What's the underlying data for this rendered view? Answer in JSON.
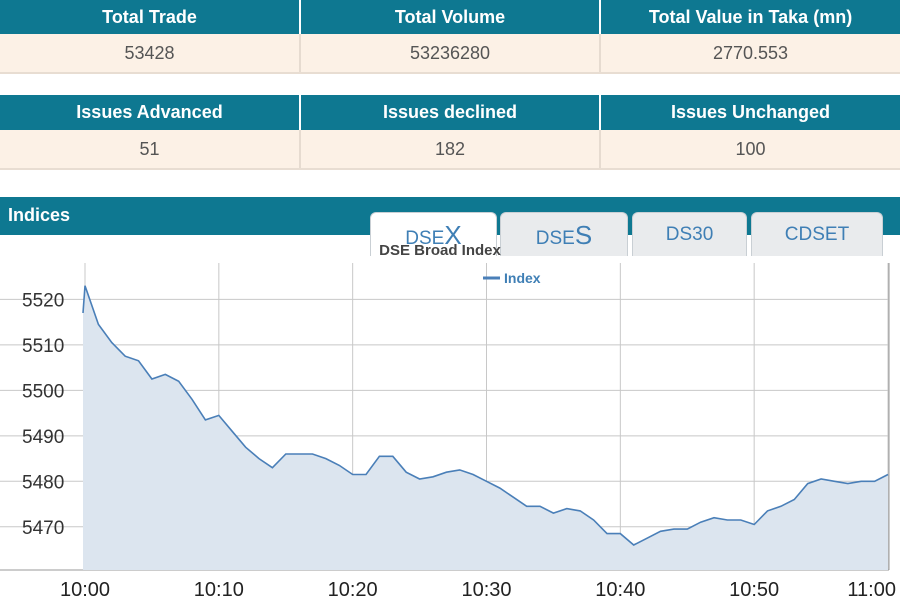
{
  "market_summary": {
    "headers": [
      "Total Trade",
      "Total Volume",
      "Total Value in Taka (mn)"
    ],
    "values": [
      "53428",
      "53236280",
      "2770.553"
    ]
  },
  "issues_summary": {
    "headers": [
      "Issues Advanced",
      "Issues declined",
      "Issues Unchanged"
    ],
    "values": [
      "51",
      "182",
      "100"
    ]
  },
  "indices_panel": {
    "title": "Indices",
    "tabs": [
      {
        "prefix": "DSE",
        "suffix": "X",
        "active": true
      },
      {
        "prefix": "DSE",
        "suffix": "S",
        "active": false
      },
      {
        "label": "DS30",
        "active": false
      },
      {
        "label": "CDSET",
        "active": false
      }
    ]
  },
  "chart_data": {
    "type": "area",
    "title": "DSE Broad Index",
    "legend": {
      "label": "Index",
      "placement": "top-center"
    },
    "line_color": "#4a7fb8",
    "fill_color": "#dce5ef",
    "grid": true,
    "x_tick_labels": [
      "10:00",
      "10:10",
      "10:20",
      "10:30",
      "10:40",
      "10:50",
      "11:00"
    ],
    "xlim_minutes": [
      0,
      60
    ],
    "y_tick_labels": [
      "5520",
      "5510",
      "5500",
      "5490",
      "5480",
      "5470"
    ],
    "ylim": [
      5460.5,
      5528
    ],
    "series": [
      {
        "name": "Index",
        "x_minutes": [
          -1,
          0,
          1,
          2,
          3,
          4,
          5,
          6,
          7,
          8,
          9,
          10,
          11,
          12,
          13,
          14,
          15,
          16,
          17,
          18,
          19,
          20,
          21,
          22,
          23,
          24,
          25,
          26,
          27,
          28,
          29,
          30,
          31,
          32,
          33,
          34,
          35,
          36,
          37,
          38,
          39,
          40,
          41,
          42,
          43,
          44,
          45,
          46,
          47,
          48,
          49,
          50,
          51,
          52,
          53,
          54,
          55,
          56,
          57,
          58,
          59,
          60
        ],
        "values": [
          5517,
          5523,
          5514.5,
          5510.5,
          5507.5,
          5506.5,
          5502.5,
          5503.5,
          5502,
          5498,
          5493.5,
          5494.5,
          5491,
          5487.5,
          5485,
          5483,
          5486,
          5486,
          5486,
          5485,
          5483.5,
          5481.5,
          5481.5,
          5485.5,
          5485.5,
          5482,
          5480.5,
          5481,
          5482,
          5482.5,
          5481.5,
          5480,
          5478.5,
          5476.5,
          5474.5,
          5474.5,
          5473,
          5474,
          5473.5,
          5471.5,
          5468.5,
          5468.5,
          5466,
          5467.5,
          5469,
          5469.5,
          5469.5,
          5471,
          5472,
          5471.5,
          5471.5,
          5470.5,
          5473.5,
          5474.5,
          5476,
          5479.5,
          5480.5,
          5480,
          5479.5,
          5480,
          5480,
          5481.5
        ]
      }
    ]
  }
}
